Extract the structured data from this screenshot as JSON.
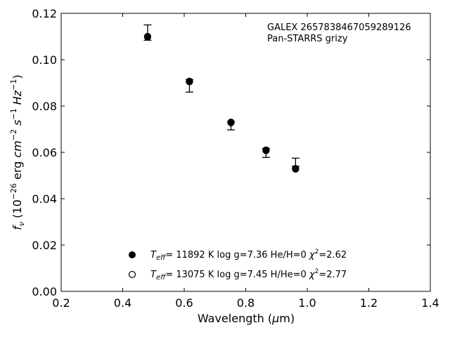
{
  "chart_data": {
    "type": "scatter",
    "title": "",
    "xlabel": "Wavelength (μm)",
    "ylabel": "fν (10⁻²⁶ erg cm⁻² s⁻¹ Hz⁻¹)",
    "xlim": [
      0.2,
      1.4
    ],
    "ylim": [
      0.0,
      0.12
    ],
    "xticks": [
      "0.2",
      "0.4",
      "0.6",
      "0.8",
      "1.0",
      "1.2",
      "1.4"
    ],
    "yticks": [
      "0.00",
      "0.02",
      "0.04",
      "0.06",
      "0.08",
      "0.10",
      "0.12"
    ],
    "grid": false,
    "annotation": [
      "GALEX 2657838467059289126",
      "Pan-STARRS grizy"
    ],
    "observed": {
      "x": [
        0.481,
        0.617,
        0.752,
        0.866,
        0.962
      ],
      "y": [
        0.1092,
        0.0903,
        0.0722,
        0.06,
        0.054
      ],
      "yerr_low": [
        0.0008,
        0.0043,
        0.0025,
        0.0022,
        0.0
      ],
      "yerr_high": [
        0.0058,
        0.0011,
        0.001,
        0.0017,
        0.0035
      ]
    },
    "series": [
      {
        "name": "Teff= 11892 K  log g=7.36  He/H=0  χ²=2.62",
        "marker": "filled",
        "x": [
          0.481,
          0.617,
          0.752,
          0.866,
          0.962
        ],
        "y": [
          0.11,
          0.0905,
          0.073,
          0.0608,
          0.053
        ]
      },
      {
        "name": "Teff= 13075 K  log g=7.45  H/He=0  χ²=2.77",
        "marker": "open",
        "x": [
          0.481,
          0.617,
          0.752,
          0.866,
          0.962
        ],
        "y": [
          0.1098,
          0.0907,
          0.0728,
          0.061,
          0.0528
        ]
      }
    ],
    "legend_placement": "bottom-center"
  },
  "legend": [
    {
      "teff_label": "T",
      "teff_sub": "eff",
      "rest": "= 11892 K  log g=7.36  He/H=0  ",
      "chi": "χ",
      "chi_sup": "2",
      "chi_val": "=2.62"
    },
    {
      "teff_label": "T",
      "teff_sub": "eff",
      "rest": "= 13075 K  log g=7.45  H/He=0  ",
      "chi": "χ",
      "chi_sup": "2",
      "chi_val": "=2.77"
    }
  ],
  "axes_text": {
    "x_prefix": "Wavelength (",
    "x_mu": "μ",
    "x_suffix": "m)",
    "y_f": "f",
    "y_nu": "ν",
    "y_open": " (10",
    "y_exp1": "−26",
    "y_erg": " erg ",
    "y_cm": "cm",
    "y_exp2": "−2",
    "y_s": " s",
    "y_exp3": "−1",
    "y_hz": " Hz",
    "y_exp4": "−1",
    "y_close": ")"
  }
}
